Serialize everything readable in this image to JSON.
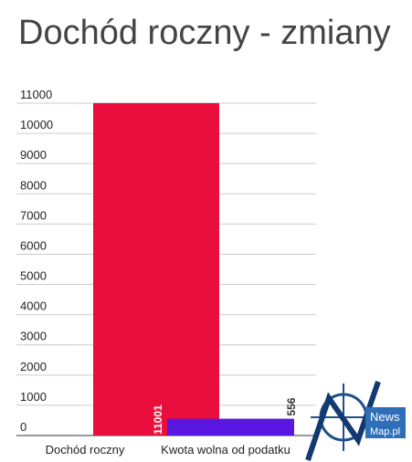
{
  "chart_data": {
    "type": "bar",
    "title": "Dochód roczny - zmiany",
    "categories": [
      "Dochód roczny",
      "Kwota wolna od podatku"
    ],
    "values": [
      11001,
      556
    ],
    "colors": [
      "#e90e3b",
      "#5a17e2"
    ],
    "ylim": [
      0,
      11000
    ],
    "yticks": [
      0,
      1000,
      2000,
      3000,
      4000,
      5000,
      6000,
      7000,
      8000,
      9000,
      10000,
      11000
    ],
    "grid": true
  },
  "logo": {
    "line1": "News",
    "line2": "Map.pl"
  }
}
